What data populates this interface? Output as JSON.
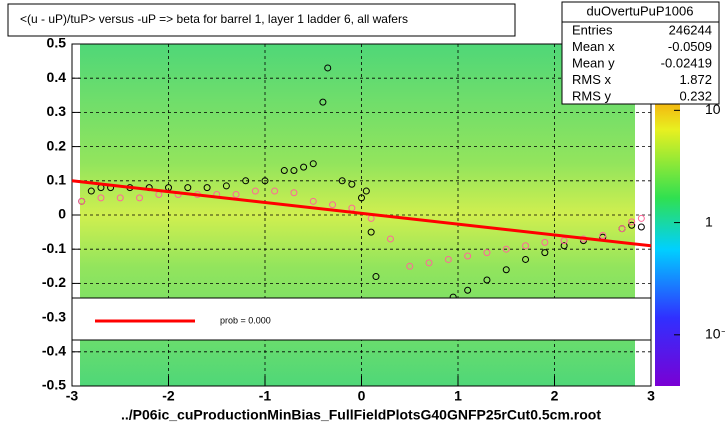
{
  "chart_data": {
    "type": "scatter",
    "title": "<(u - uP)/tuP> versus  -uP => beta for barrel 1, layer 1 ladder 6, all wafers",
    "x_label": "../P06ic_cuProductionMinBias_FullFieldPlotsG40GNFP25rCut0.5cm.root",
    "xlim": [
      -3,
      3
    ],
    "xticks": [
      -3,
      -2,
      -1,
      0,
      1,
      2,
      3
    ],
    "ylim": [
      -0.5,
      0.5
    ],
    "yticks": [
      -0.5,
      -0.4,
      -0.3,
      -0.2,
      -0.1,
      0,
      0.1,
      0.2,
      0.3,
      0.4,
      0.5
    ],
    "grid": true,
    "zlim": [
      0.035,
      39
    ],
    "zlog": true,
    "zticks": [
      {
        "value": 10,
        "label": "10"
      },
      {
        "value": 1,
        "label": "1"
      },
      {
        "value": 0.1,
        "label": "10⁻¹"
      }
    ],
    "series": [
      {
        "color": "#000000",
        "x": [
          -2.9,
          -2.8,
          -2.7,
          -2.6,
          -2.4,
          -2.2,
          -2.0,
          -1.8,
          -1.6,
          -1.4,
          -1.2,
          -1.0,
          -0.8,
          -0.7,
          -0.6,
          -0.5,
          -0.4,
          -0.35,
          -0.2,
          -0.1,
          0.0,
          0.05,
          0.1,
          0.15,
          0.95,
          1.1,
          1.3,
          1.5,
          1.7,
          1.9,
          2.1,
          2.3,
          2.5,
          2.7,
          2.8,
          2.9
        ],
        "values": [
          0.04,
          0.07,
          0.08,
          0.08,
          0.08,
          0.08,
          0.08,
          0.08,
          0.08,
          0.085,
          0.1,
          0.1,
          0.13,
          0.13,
          0.14,
          0.15,
          0.33,
          0.43,
          0.1,
          0.09,
          0.05,
          0.07,
          -0.05,
          -0.18,
          -0.24,
          -0.22,
          -0.19,
          -0.16,
          -0.13,
          -0.11,
          -0.09,
          -0.075,
          -0.065,
          -0.04,
          -0.03,
          -0.035
        ]
      },
      {
        "color": "#ff6699",
        "x": [
          -2.9,
          -2.7,
          -2.5,
          -2.3,
          -2.1,
          -1.9,
          -1.7,
          -1.5,
          -1.3,
          -1.1,
          -0.9,
          -0.7,
          -0.5,
          -0.3,
          -0.1,
          0.1,
          0.3,
          0.5,
          0.7,
          0.9,
          1.1,
          1.3,
          1.5,
          1.7,
          1.9,
          2.1,
          2.3,
          2.5,
          2.7,
          2.8,
          2.9
        ],
        "values": [
          0.04,
          0.05,
          0.05,
          0.05,
          0.06,
          0.06,
          0.06,
          0.06,
          0.06,
          0.07,
          0.07,
          0.065,
          0.04,
          0.03,
          0.02,
          -0.01,
          -0.07,
          -0.15,
          -0.14,
          -0.13,
          -0.12,
          -0.11,
          -0.1,
          -0.09,
          -0.08,
          -0.075,
          -0.07,
          -0.06,
          -0.04,
          -0.02,
          -0.01
        ]
      }
    ],
    "fit": {
      "color": "#ff0000",
      "x": [
        -3,
        3
      ],
      "values": [
        0.1,
        -0.09
      ]
    },
    "legend_text": "prob = 0.000",
    "stats": {
      "name": "duOvertuPuP1006",
      "rows": [
        {
          "label": "Entries",
          "value": 246244
        },
        {
          "label": "Mean x",
          "value": -0.0509
        },
        {
          "label": "Mean y",
          "value": -0.02419
        },
        {
          "label": "RMS x",
          "value": 1.872
        },
        {
          "label": "RMS y",
          "value": 0.232
        }
      ]
    }
  }
}
